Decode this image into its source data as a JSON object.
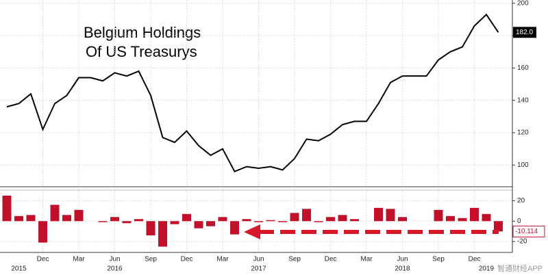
{
  "chart_data": {
    "type": "line",
    "title_lines": [
      "Belgium Holdings",
      "Of US Treasurys"
    ],
    "categories": [
      null,
      null,
      null,
      "Dec",
      null,
      null,
      "Mar",
      null,
      null,
      "Jun",
      null,
      null,
      "Sep",
      null,
      null,
      "Dec",
      null,
      null,
      "Mar",
      null,
      null,
      "Jun",
      null,
      null,
      "Sep",
      null,
      null,
      "Dec",
      null,
      null,
      "Mar",
      null,
      null,
      "Jun",
      null,
      null,
      "Sep",
      null,
      null,
      "Dec",
      null,
      null
    ],
    "category_years": [
      null,
      "2015",
      null,
      null,
      null,
      null,
      null,
      null,
      null,
      "2016",
      null,
      null,
      null,
      null,
      null,
      null,
      null,
      null,
      null,
      null,
      null,
      "2017",
      null,
      null,
      null,
      null,
      null,
      null,
      null,
      null,
      null,
      null,
      null,
      "2018",
      null,
      null,
      null,
      null,
      null,
      null,
      "2019",
      null
    ],
    "series": [
      {
        "color": "#000000",
        "values": [
          136,
          138,
          144,
          122,
          138,
          143,
          154,
          154,
          152,
          157,
          155,
          158,
          143,
          117,
          114,
          121,
          112,
          106,
          110,
          96,
          99,
          98,
          99,
          97,
          104,
          116,
          115,
          119,
          125,
          127,
          127,
          138,
          151,
          155,
          155,
          155,
          165,
          170,
          173,
          186,
          193,
          182
        ]
      }
    ],
    "last_label": "182.0",
    "ylim": [
      87,
      202
    ],
    "yticks": [
      100,
      120,
      140,
      160,
      180,
      200
    ],
    "grid": true,
    "lower_panel": {
      "type": "bar",
      "color": "#c0102a",
      "values": [
        25,
        5,
        6,
        -21,
        16,
        6,
        11,
        0,
        -1,
        4,
        -2,
        2,
        -14,
        -25,
        -3,
        7,
        -7,
        -5,
        4,
        -13,
        2,
        -1,
        1,
        -1,
        8,
        12,
        -1,
        4,
        6,
        2,
        0,
        13,
        12,
        4,
        0,
        0,
        11,
        5,
        3,
        13,
        7,
        -10.114
      ],
      "ylim": [
        -30,
        29
      ],
      "yticks": [
        -20,
        0,
        20
      ],
      "grid": true
    },
    "watermark": "智通财经APP"
  }
}
